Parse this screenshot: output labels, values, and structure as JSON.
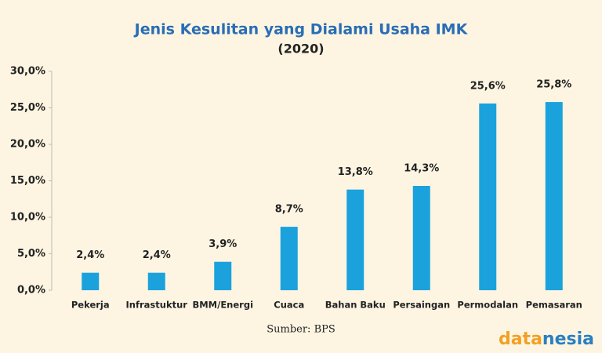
{
  "chart_data": {
    "type": "bar",
    "title": "Jenis Kesulitan yang Dialami Usaha IMK",
    "subtitle": "(2020)",
    "categories": [
      "Pekerja",
      "Infrastuktur",
      "BMM/Energi",
      "Cuaca",
      "Bahan Baku",
      "Persaingan",
      "Permodalan",
      "Pemasaran"
    ],
    "values": [
      2.4,
      2.4,
      3.9,
      8.7,
      13.8,
      14.3,
      25.6,
      25.8
    ],
    "value_labels": [
      "2,4%",
      "2,4%",
      "3,9%",
      "8,7%",
      "13,8%",
      "14,3%",
      "25,6%",
      "25,8%"
    ],
    "color": "#1ba2dc",
    "ylim": [
      0,
      30
    ],
    "yticks": [
      {
        "value": 0,
        "label": "0,0%"
      },
      {
        "value": 5,
        "label": "5,0%"
      },
      {
        "value": 10,
        "label": "10,0%"
      },
      {
        "value": 15,
        "label": "15,0%"
      },
      {
        "value": 20,
        "label": "20,0%"
      },
      {
        "value": 25,
        "label": "25,0%"
      },
      {
        "value": 30,
        "label": "30,0%"
      }
    ],
    "grid": false,
    "source": "Sumber: BPS",
    "logo": [
      "data",
      "nesia"
    ]
  }
}
